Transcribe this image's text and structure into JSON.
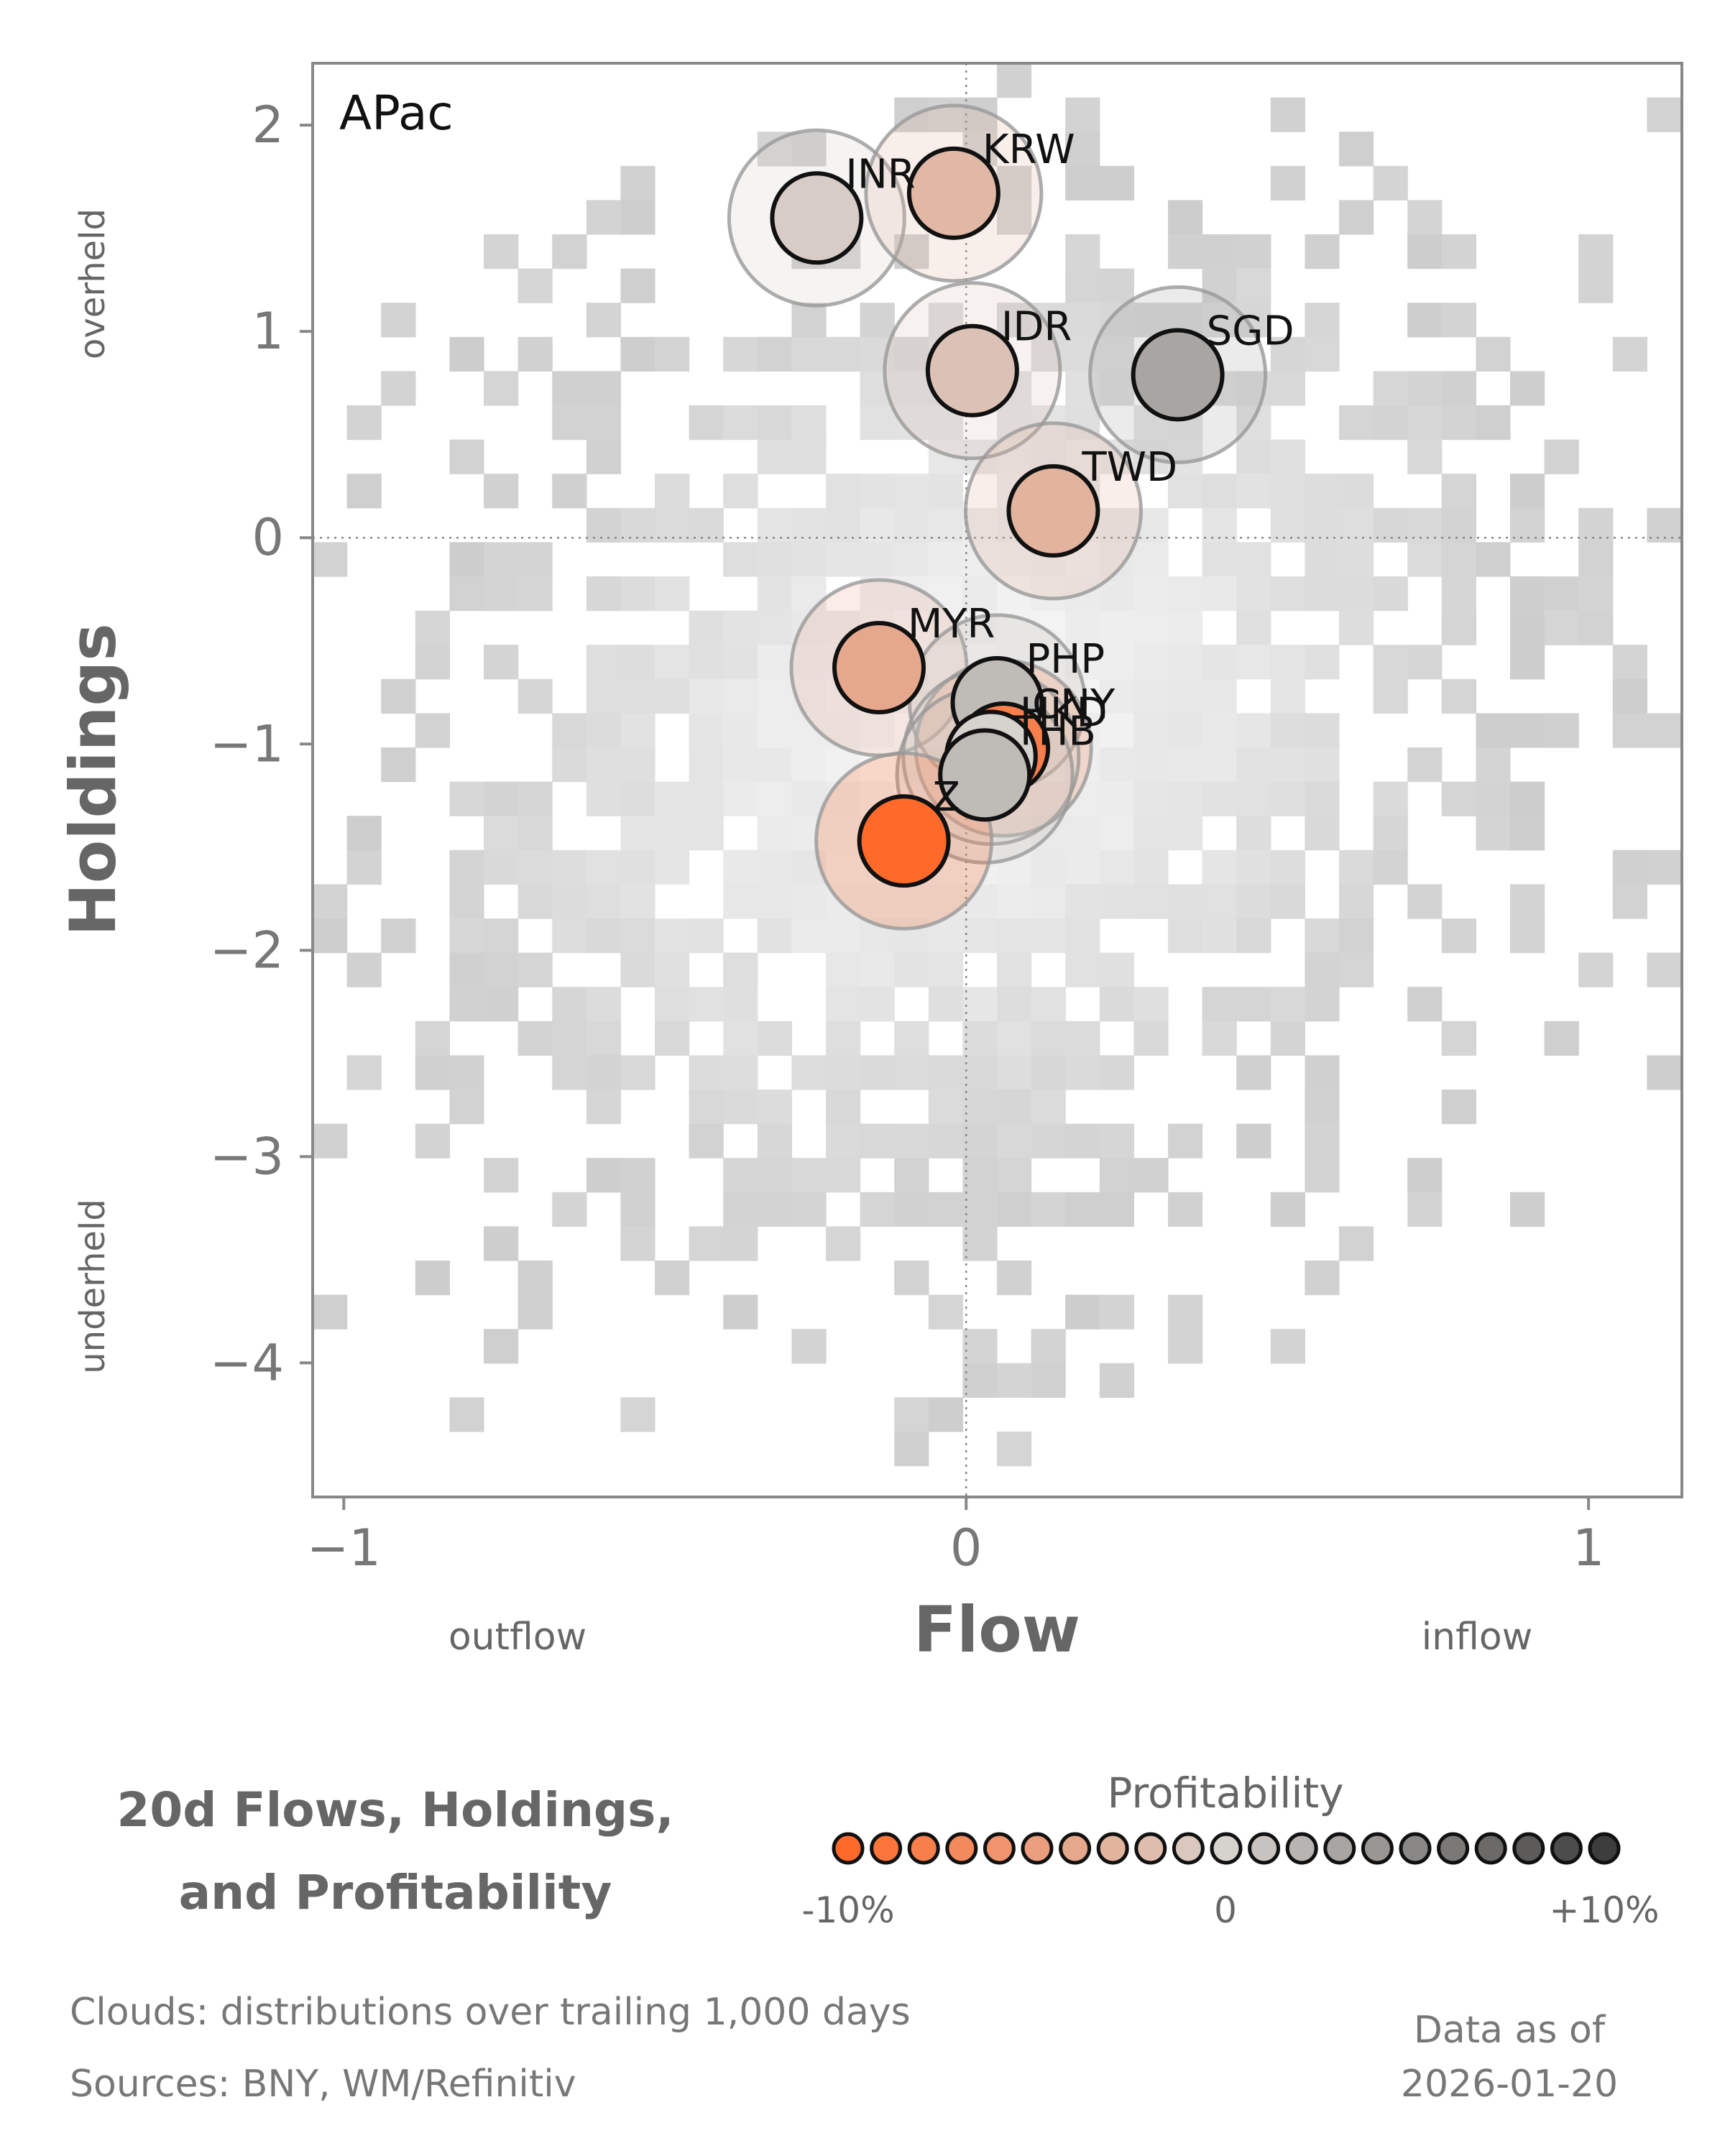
{
  "chart_data": {
    "type": "scatter",
    "panel_label": "APac",
    "xlabel": "Flow",
    "ylabel": "Holdings",
    "x_side_labels": {
      "low": "outflow",
      "high": "inflow"
    },
    "y_side_labels": {
      "high": "overheld",
      "low": "underheld"
    },
    "xlim": [
      -1.05,
      1.15
    ],
    "ylim": [
      -4.65,
      2.3
    ],
    "xticks": [
      {
        "value": -1,
        "label": "−1"
      },
      {
        "value": 0,
        "label": "0"
      },
      {
        "value": 1,
        "label": "1"
      }
    ],
    "yticks": [
      {
        "value": 2,
        "label": "2"
      },
      {
        "value": 1,
        "label": "1"
      },
      {
        "value": 0,
        "label": "0"
      },
      {
        "value": -1,
        "label": "−1"
      },
      {
        "value": -2,
        "label": "−2"
      },
      {
        "value": -3,
        "label": "−3"
      },
      {
        "value": -4,
        "label": "−4"
      }
    ],
    "reference_lines": {
      "x": 0,
      "y": 0
    },
    "background": "2D histogram cloud of trailing 1,000 days distributions",
    "points": [
      {
        "label": "INR",
        "flow": -0.24,
        "holdings": 1.55,
        "profitability": -0.5
      },
      {
        "label": "KRW",
        "flow": -0.02,
        "holdings": 1.67,
        "profitability": -2.5
      },
      {
        "label": "IDR",
        "flow": 0.01,
        "holdings": 0.81,
        "profitability": -1.5
      },
      {
        "label": "SGD",
        "flow": 0.34,
        "holdings": 0.79,
        "profitability": 3.0
      },
      {
        "label": "TWD",
        "flow": 0.14,
        "holdings": 0.13,
        "profitability": -3.0
      },
      {
        "label": "MYR",
        "flow": -0.14,
        "holdings": -0.63,
        "profitability": -4.0
      },
      {
        "label": "PHP",
        "flow": 0.05,
        "holdings": -0.8,
        "profitability": 1.5
      },
      {
        "label": "CNY",
        "flow": 0.06,
        "holdings": -1.02,
        "profitability": -8.0
      },
      {
        "label": "HKD",
        "flow": 0.04,
        "holdings": -1.06,
        "profitability": 0.0
      },
      {
        "label": "THB",
        "flow": 0.03,
        "holdings": -1.15,
        "profitability": 1.5
      },
      {
        "label": "Z",
        "flow": -0.1,
        "holdings": -1.47,
        "profitability": -10.0
      }
    ],
    "colorbar": {
      "title": "Profitability",
      "min": -10,
      "max": 10,
      "unit": "%",
      "tick_labels": [
        "-10%",
        "0",
        "+10%"
      ],
      "low_color": "#ff6a2b",
      "mid_color": "#d6d2ce",
      "high_color": "#3d3d3d"
    }
  },
  "legend": {
    "title_line1": "20d Flows, Holdings,",
    "title_line2": "and Profitability"
  },
  "footer": {
    "clouds_note": "Clouds:  distributions over trailing 1,000 days",
    "sources_note": "Sources:  BNY, WM/Refinitiv",
    "date_line1": "Data as of",
    "date_line2": "2026-01-20"
  }
}
